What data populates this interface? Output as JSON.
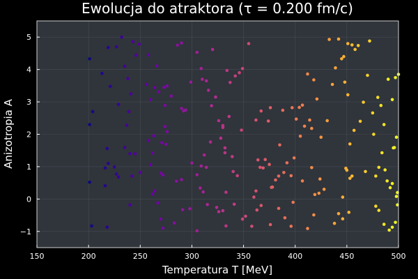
{
  "colors": {
    "background": "#000000",
    "plot_background": "#30343b",
    "text": "#ffffff",
    "colormap": [
      "#0d0887",
      "#6a00a8",
      "#b12a90",
      "#e16462",
      "#fca636",
      "#f0f921"
    ]
  },
  "chart_data": {
    "type": "scatter",
    "title": "Ewolucja do atraktora (τ = 0.200 fm/c)",
    "xlabel": "Temperatura T [MeV]",
    "ylabel": "Anizotropia A",
    "xlim": [
      150,
      500
    ],
    "ylim": [
      -1.5,
      5.5
    ],
    "xticks": [
      150,
      200,
      250,
      300,
      350,
      400,
      450,
      500
    ],
    "yticks": [
      -1,
      0,
      1,
      2,
      3,
      4,
      5
    ],
    "grid": true,
    "legend": "none",
    "marker_color_scale": "plasma (by T)",
    "points": [
      [
        201,
        4.33
      ],
      [
        213,
        3.88
      ],
      [
        219,
        4.68
      ],
      [
        221,
        3.48
      ],
      [
        227,
        4.7
      ],
      [
        232,
        5.0
      ],
      [
        229,
        2.92
      ],
      [
        235,
        4.1
      ],
      [
        238,
        3.72
      ],
      [
        243,
        4.86
      ],
      [
        246,
        4.44
      ],
      [
        249,
        4.78
      ],
      [
        239,
        2.7
      ],
      [
        241,
        3.25
      ],
      [
        204,
        2.7
      ],
      [
        201,
        2.3
      ],
      [
        237,
        2.28
      ],
      [
        218,
        1.56
      ],
      [
        216,
        0.96
      ],
      [
        219,
        1.1
      ],
      [
        225,
        0.99
      ],
      [
        227,
        0.77
      ],
      [
        235,
        1.59
      ],
      [
        240,
        1.4
      ],
      [
        245,
        1.4
      ],
      [
        250,
        0.82
      ],
      [
        201,
        0.52
      ],
      [
        216,
        0.41
      ],
      [
        229,
        0.68
      ],
      [
        242,
        0.71
      ],
      [
        240,
        -0.18
      ],
      [
        203,
        -0.83
      ],
      [
        218,
        -0.87
      ],
      [
        258,
        4.45
      ],
      [
        266,
        4.11
      ],
      [
        273,
        3.45
      ],
      [
        276,
        3.49
      ],
      [
        280,
        3.18
      ],
      [
        286,
        4.75
      ],
      [
        290,
        4.82
      ],
      [
        299,
        3.61
      ],
      [
        305,
        4.53
      ],
      [
        309,
        4.03
      ],
      [
        310,
        3.7
      ],
      [
        314,
        3.65
      ],
      [
        316,
        3.36
      ],
      [
        256,
        3.54
      ],
      [
        260,
        3.07
      ],
      [
        264,
        3.44
      ],
      [
        268,
        3.31
      ],
      [
        274,
        2.89
      ],
      [
        274,
        2.24
      ],
      [
        276,
        2.08
      ],
      [
        271,
        1.74
      ],
      [
        263,
        1.95
      ],
      [
        258,
        1.81
      ],
      [
        260,
        1.06
      ],
      [
        262,
        1.42
      ],
      [
        270,
        0.8
      ],
      [
        272,
        0.74
      ],
      [
        275,
        1.69
      ],
      [
        290,
        2.8
      ],
      [
        292,
        2.72
      ],
      [
        294,
        2.75
      ],
      [
        300,
        1.11
      ],
      [
        309,
        1.02
      ],
      [
        312,
        1.36
      ],
      [
        318,
        1.76
      ],
      [
        314,
        0.98
      ],
      [
        305,
        0.75
      ],
      [
        290,
        0.6
      ],
      [
        285,
        0.55
      ],
      [
        264,
        0.25
      ],
      [
        262,
        0.15
      ],
      [
        267,
        -0.12
      ],
      [
        270,
        -0.62
      ],
      [
        272,
        -0.9
      ],
      [
        283,
        -0.74
      ],
      [
        291,
        -0.33
      ],
      [
        298,
        -0.3
      ],
      [
        305,
        -0.98
      ],
      [
        308,
        0.34
      ],
      [
        311,
        0.22
      ],
      [
        315,
        -0.17
      ],
      [
        320,
        4.62
      ],
      [
        323,
        3.15
      ],
      [
        319,
        2.88
      ],
      [
        330,
        2.27
      ],
      [
        334,
        3.97
      ],
      [
        337,
        3.6
      ],
      [
        342,
        3.8
      ],
      [
        346,
        3.9
      ],
      [
        349,
        4.03
      ],
      [
        355,
        4.8
      ],
      [
        348,
        2.13
      ],
      [
        326,
        2.42
      ],
      [
        330,
        2.21
      ],
      [
        336,
        2.55
      ],
      [
        328,
        1.88
      ],
      [
        332,
        1.43
      ],
      [
        332,
        1.58
      ],
      [
        340,
        0.85
      ],
      [
        344,
        0.72
      ],
      [
        339,
        1.31
      ],
      [
        333,
        0.21
      ],
      [
        324,
        -0.26
      ],
      [
        326,
        -0.39
      ],
      [
        330,
        -0.36
      ],
      [
        333,
        -0.83
      ],
      [
        341,
        -0.16
      ],
      [
        349,
        -0.62
      ],
      [
        352,
        -0.53
      ],
      [
        360,
        0.06
      ],
      [
        362,
        0.25
      ],
      [
        364,
        1.21
      ],
      [
        366,
        0.98
      ],
      [
        369,
        0.96
      ],
      [
        371,
        1.22
      ],
      [
        375,
        1.07
      ],
      [
        377,
        0.36
      ],
      [
        381,
        0.59
      ],
      [
        384,
        0.71
      ],
      [
        389,
        0.82
      ],
      [
        392,
        1.12
      ],
      [
        396,
        0.72
      ],
      [
        385,
        1.67
      ],
      [
        399,
        1.27
      ],
      [
        367,
        2.72
      ],
      [
        376,
        2.82
      ],
      [
        388,
        2.74
      ],
      [
        397,
        2.82
      ],
      [
        401,
        2.47
      ],
      [
        404,
        2.83
      ],
      [
        407,
        2.9
      ],
      [
        362,
        2.44
      ],
      [
        374,
        2.41
      ],
      [
        378,
        0.37
      ],
      [
        384,
        -0.29
      ],
      [
        390,
        -0.58
      ],
      [
        398,
        -0.1
      ],
      [
        396,
        -0.84
      ],
      [
        376,
        -0.79
      ],
      [
        358,
        -0.84
      ],
      [
        363,
        -0.34
      ],
      [
        367,
        -0.2
      ],
      [
        405,
        1.94
      ],
      [
        407,
        0.56
      ],
      [
        409,
        2.25
      ],
      [
        412,
        3.86
      ],
      [
        414,
        2.44
      ],
      [
        416,
        2.18
      ],
      [
        418,
        3.68
      ],
      [
        419,
        0.14
      ],
      [
        421,
        3.09
      ],
      [
        425,
        1.91
      ],
      [
        424,
        0.62
      ],
      [
        428,
        0.3
      ],
      [
        431,
        2.42
      ],
      [
        433,
        4.93
      ],
      [
        436,
        3.54
      ],
      [
        439,
        4.05
      ],
      [
        442,
        4.94
      ],
      [
        445,
        4.33
      ],
      [
        447,
        4.4
      ],
      [
        448,
        3.61
      ],
      [
        451,
        3.22
      ],
      [
        453,
        1.7
      ],
      [
        449,
        0.95
      ],
      [
        450,
        0.89
      ],
      [
        455,
        0.71
      ],
      [
        446,
        0.06
      ],
      [
        451,
        4.8
      ],
      [
        455,
        4.76
      ],
      [
        458,
        4.62
      ],
      [
        461,
        4.74
      ],
      [
        463,
        2.4
      ],
      [
        466,
        2.99
      ],
      [
        468,
        0.85
      ],
      [
        470,
        3.82
      ],
      [
        476,
        2.0
      ],
      [
        478,
        0.71
      ],
      [
        481,
        0.98
      ],
      [
        484,
        1.43
      ],
      [
        487,
        0.9
      ],
      [
        489,
        0.56
      ],
      [
        492,
        0.35
      ],
      [
        494,
        0.48
      ],
      [
        496,
        1.59
      ],
      [
        498,
        0.08
      ],
      [
        499,
        -0.18
      ],
      [
        497,
        -0.72
      ],
      [
        494,
        -0.87
      ],
      [
        491,
        -0.96
      ],
      [
        486,
        -0.78
      ],
      [
        480,
        3.14
      ],
      [
        483,
        2.89
      ],
      [
        486,
        2.3
      ],
      [
        490,
        3.7
      ],
      [
        494,
        3.07
      ],
      [
        497,
        3.75
      ],
      [
        500,
        3.85
      ],
      [
        472,
        4.88
      ],
      [
        475,
        2.66
      ],
      [
        478,
        -0.22
      ],
      [
        481,
        -0.35
      ],
      [
        416,
        0.97
      ],
      [
        423,
        0.18
      ],
      [
        412,
        -0.91
      ],
      [
        418,
        -0.49
      ],
      [
        438,
        -0.75
      ],
      [
        442,
        -0.45
      ],
      [
        446,
        -0.61
      ],
      [
        452,
        -0.41
      ],
      [
        498,
        1.91
      ],
      [
        495,
        1.58
      ],
      [
        499,
        0.2
      ],
      [
        453,
        0.64
      ],
      [
        457,
        2.12
      ]
    ]
  }
}
